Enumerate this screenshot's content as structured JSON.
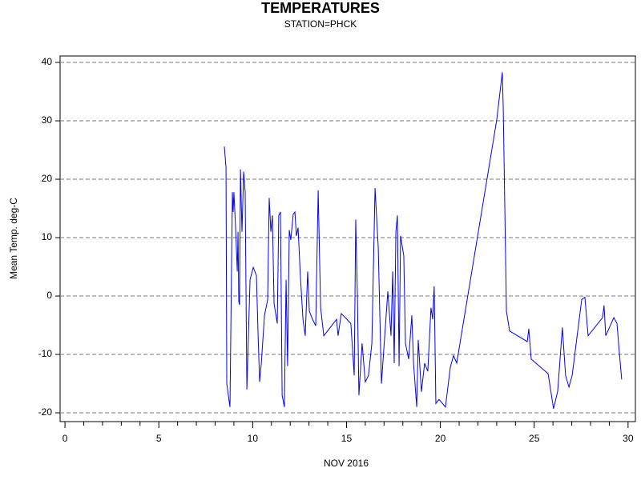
{
  "chart_data": {
    "type": "line",
    "title": "TEMPERATURES",
    "subtitle": "STATION=PHCK",
    "x_label": "NOV 2016",
    "y_label": "Mean Temp. deg-C",
    "xlim": [
      -0.26,
      30.39
    ],
    "ylim": [
      -21.5,
      41.1
    ],
    "xticks": [
      0,
      5,
      10,
      15,
      20,
      25,
      30
    ],
    "xminor": [
      1,
      2,
      3,
      4,
      6,
      7,
      8,
      9,
      11,
      12,
      13,
      14,
      16,
      17,
      18,
      19,
      21,
      22,
      23,
      24,
      26,
      27,
      28,
      29
    ],
    "yticks": [
      -20,
      -10,
      0,
      10,
      20,
      30,
      40
    ],
    "grid": true,
    "series": [
      {
        "name": "Mean Temp.",
        "color": "#0000ff",
        "x": [
          8.49,
          8.58,
          8.62,
          8.79,
          8.92,
          8.96,
          9.0,
          9.09,
          9.18,
          9.22,
          9.26,
          9.3,
          9.35,
          9.43,
          9.52,
          9.6,
          9.69,
          9.86,
          10.03,
          10.2,
          10.29,
          10.37,
          10.46,
          10.63,
          10.8,
          10.88,
          10.97,
          11.05,
          11.14,
          11.31,
          11.39,
          11.48,
          11.57,
          11.69,
          11.78,
          11.86,
          11.95,
          12.03,
          12.16,
          12.25,
          12.33,
          12.42,
          12.54,
          12.68,
          12.8,
          12.93,
          13.02,
          13.19,
          13.36,
          13.49,
          13.62,
          13.79,
          14.47,
          14.55,
          14.72,
          15.23,
          15.41,
          15.49,
          15.58,
          15.66,
          15.83,
          16.0,
          16.17,
          16.35,
          16.52,
          16.69,
          16.86,
          17.2,
          17.37,
          17.46,
          17.54,
          17.63,
          17.71,
          17.8,
          17.88,
          18.05,
          18.14,
          18.31,
          18.48,
          18.57,
          18.74,
          18.82,
          18.99,
          19.16,
          19.33,
          19.5,
          19.59,
          19.67,
          19.76,
          19.93,
          20.27,
          20.53,
          20.7,
          20.87,
          23.0,
          23.3,
          23.35,
          23.52,
          23.69,
          24.63,
          24.71,
          24.84,
          25.74,
          26.03,
          26.25,
          26.5,
          26.67,
          26.85,
          27.02,
          27.53,
          27.7,
          27.87,
          28.64,
          28.72,
          28.81,
          29.24,
          29.41,
          29.53,
          29.66
        ],
        "values": [
          25.6,
          22,
          -15,
          -19,
          17.8,
          14.4,
          17.8,
          11.7,
          4.2,
          11,
          -1,
          -1.5,
          21.7,
          11,
          21.3,
          17.8,
          -16,
          2.8,
          4.9,
          3.5,
          -6.8,
          -14.7,
          -11.5,
          -3.3,
          -0.6,
          16.8,
          11,
          13.8,
          -1.3,
          -4.7,
          13.8,
          14.4,
          -17,
          -19,
          2.8,
          -12,
          11.3,
          9.6,
          14,
          14.4,
          10.3,
          11.7,
          3.5,
          -4,
          -6.8,
          4.2,
          -2.6,
          -4,
          -5.1,
          18.1,
          -2,
          -6.8,
          -4,
          -6.8,
          -3,
          -4.7,
          -13.6,
          13.1,
          0.1,
          -17,
          -8.1,
          -14.7,
          -13.6,
          -8.1,
          18.5,
          8.3,
          -15,
          0.8,
          -6.8,
          4.2,
          -11.5,
          11,
          13.8,
          -12,
          10.3,
          6.9,
          -8.1,
          -10.8,
          -3.3,
          -11.5,
          -19,
          -7.5,
          -16.4,
          -11.5,
          -12.9,
          -2,
          -4,
          1.7,
          -18.4,
          -17.7,
          -19,
          -12.2,
          -10.2,
          -11.5,
          30.1,
          38.3,
          32.2,
          -2.6,
          -6,
          -7.8,
          -5.6,
          -10.8,
          -13.3,
          -19.3,
          -16.3,
          -5.4,
          -13.6,
          -15.6,
          -13.6,
          -0.6,
          -0.2,
          -6.8,
          -3.7,
          -1.6,
          -6.8,
          -3.7,
          -4.7,
          -9.5,
          -14.3
        ]
      }
    ]
  }
}
